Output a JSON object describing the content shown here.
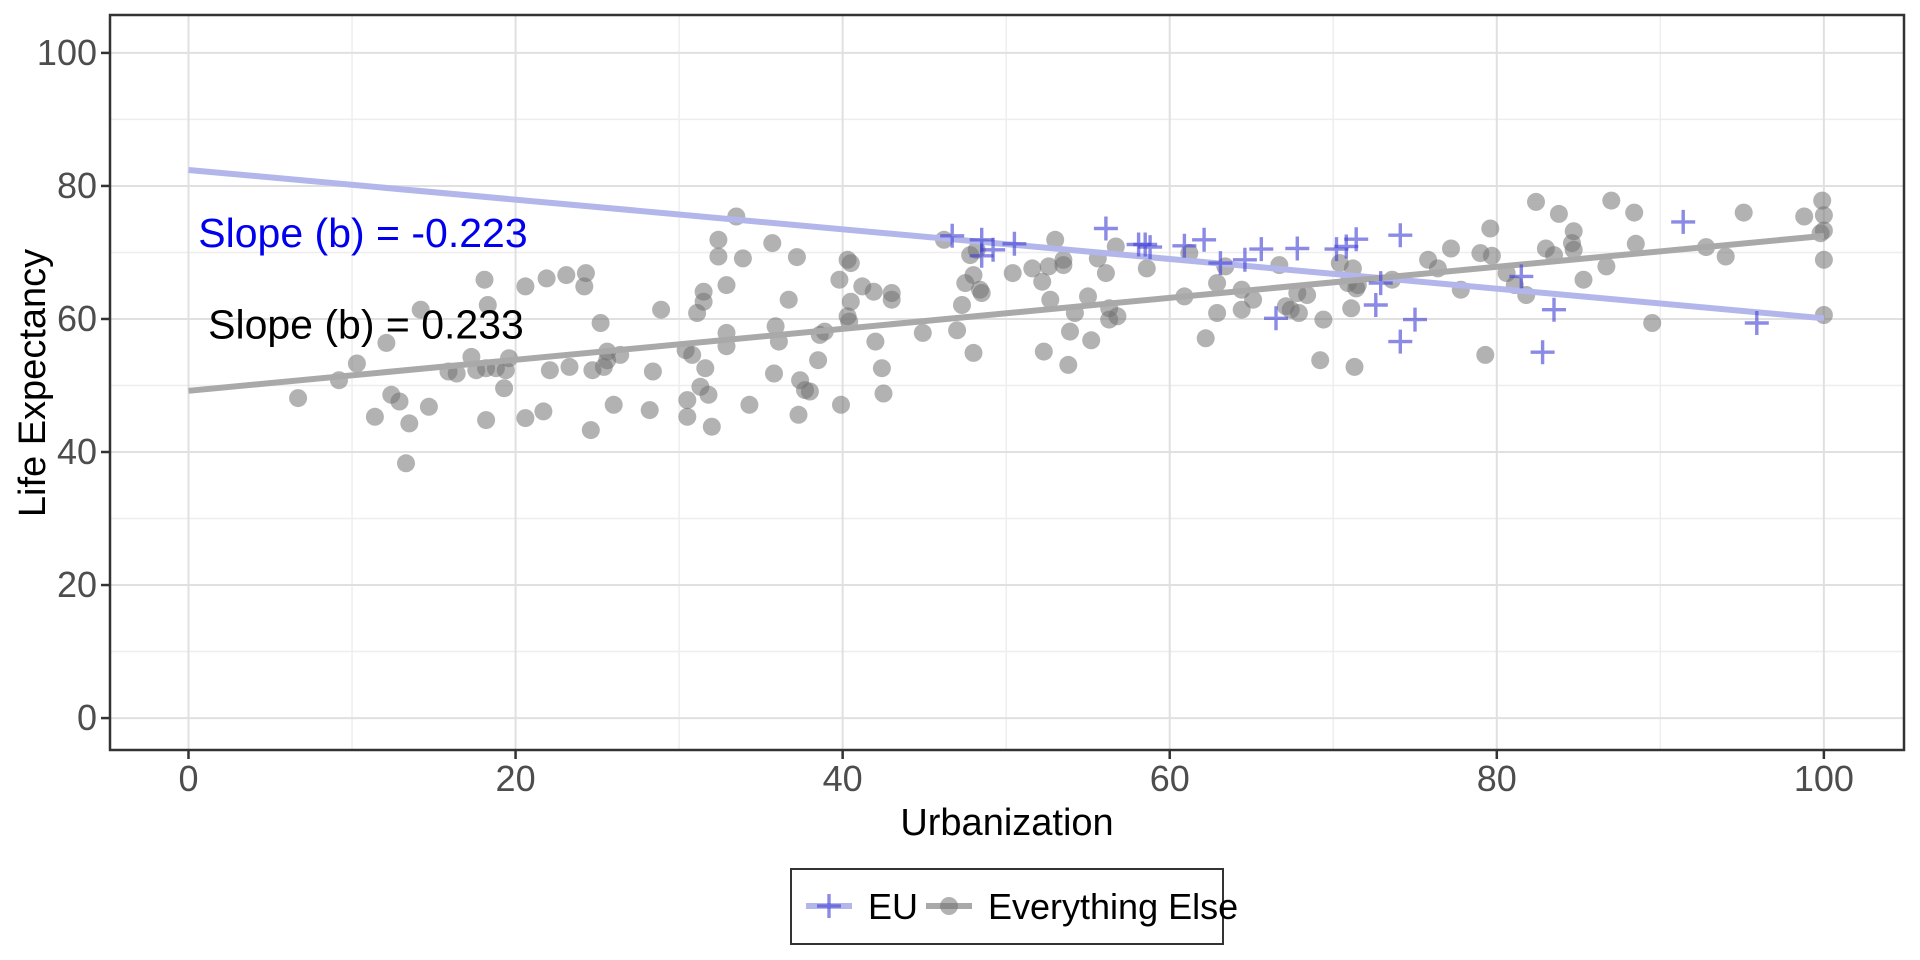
{
  "figure": {
    "background": "#ffffff",
    "panel_border_color": "#333333",
    "grid_major_color": "#e0e0e0",
    "grid_minor_color": "#eeeeee",
    "tick_mark_color": "#333333",
    "tick_label_color": "#4d4d4d"
  },
  "chart_data": {
    "type": "scatter",
    "title": "",
    "xlabel": "Urbanization",
    "ylabel": "Life Expectancy",
    "x_ticks": [
      0,
      20,
      40,
      60,
      80,
      100
    ],
    "y_ticks": [
      0,
      20,
      40,
      60,
      80,
      100
    ],
    "x_minor_ticks": [
      10,
      30,
      50,
      70,
      90
    ],
    "y_minor_ticks": [
      10,
      30,
      50,
      70,
      90
    ],
    "xlim": [
      -4.8,
      104.9
    ],
    "ylim": [
      -4.8,
      105.7
    ],
    "grid": true,
    "legend_position": "bottom",
    "series": [
      {
        "name": "EU",
        "marker": "plus",
        "marker_color": "#4343d6",
        "marker_opacity": 0.62,
        "line_color": "#b3b6ea",
        "regression": {
          "intercept": 82.4,
          "slope": -0.223,
          "x_start": 0,
          "x_end": 100
        },
        "annotation": {
          "text": "Slope (b) = -0.223",
          "color": "#0000EE",
          "x": 0.6,
          "y": 70.8
        },
        "points": [
          [
            46.7,
            72.5
          ],
          [
            48.5,
            71.9
          ],
          [
            48.5,
            69.5
          ],
          [
            49.2,
            70.4
          ],
          [
            50.5,
            71.3
          ],
          [
            56.1,
            73.6
          ],
          [
            58.1,
            71.2
          ],
          [
            58.5,
            71.2
          ],
          [
            58.8,
            70.8
          ],
          [
            60.9,
            71.0
          ],
          [
            62.1,
            71.9
          ],
          [
            63.1,
            68.4
          ],
          [
            64.6,
            68.9
          ],
          [
            65.6,
            70.5
          ],
          [
            66.5,
            60.1
          ],
          [
            67.8,
            70.6
          ],
          [
            70.2,
            70.5
          ],
          [
            70.8,
            70.9
          ],
          [
            71.4,
            72.0
          ],
          [
            72.6,
            62.1
          ],
          [
            72.9,
            65.4
          ],
          [
            74.1,
            72.6
          ],
          [
            74.1,
            56.6
          ],
          [
            75.0,
            59.9
          ],
          [
            81.5,
            66.4
          ],
          [
            82.8,
            55.0
          ],
          [
            83.5,
            61.4
          ],
          [
            91.4,
            74.6
          ],
          [
            95.9,
            59.4
          ]
        ]
      },
      {
        "name": "Everything Else",
        "marker": "circle",
        "marker_color": "#737373",
        "marker_opacity": 0.55,
        "line_color": "#a9a9a9",
        "regression": {
          "intercept": 49.2,
          "slope": 0.233,
          "x_start": 0,
          "x_end": 100
        },
        "annotation": {
          "text": "Slope (b) = 0.233",
          "color": "#000000",
          "x": 1.2,
          "y": 57.1
        },
        "points": [
          [
            6.7,
            48.1
          ],
          [
            9.2,
            50.8
          ],
          [
            10.3,
            53.3
          ],
          [
            11.4,
            45.3
          ],
          [
            12.1,
            56.4
          ],
          [
            12.4,
            48.6
          ],
          [
            12.9,
            47.6
          ],
          [
            13.3,
            38.3
          ],
          [
            13.5,
            44.3
          ],
          [
            14.2,
            61.4
          ],
          [
            14.7,
            46.8
          ],
          [
            15.9,
            52.1
          ],
          [
            16.4,
            51.8
          ],
          [
            17.3,
            54.3
          ],
          [
            17.6,
            52.3
          ],
          [
            18.1,
            65.9
          ],
          [
            18.2,
            52.6
          ],
          [
            18.2,
            44.8
          ],
          [
            18.3,
            62.1
          ],
          [
            18.8,
            52.6
          ],
          [
            19.3,
            49.6
          ],
          [
            19.4,
            52.3
          ],
          [
            19.6,
            54.1
          ],
          [
            20.6,
            64.9
          ],
          [
            20.6,
            45.1
          ],
          [
            21.7,
            46.1
          ],
          [
            21.9,
            66.1
          ],
          [
            22.1,
            52.3
          ],
          [
            23.1,
            66.6
          ],
          [
            23.3,
            52.8
          ],
          [
            24.2,
            64.9
          ],
          [
            24.3,
            66.9
          ],
          [
            24.6,
            43.3
          ],
          [
            24.7,
            52.3
          ],
          [
            25.2,
            59.4
          ],
          [
            25.4,
            52.8
          ],
          [
            25.6,
            55.1
          ],
          [
            25.6,
            53.8
          ],
          [
            26.0,
            47.1
          ],
          [
            26.4,
            54.6
          ],
          [
            28.2,
            46.3
          ],
          [
            28.4,
            52.1
          ],
          [
            28.9,
            61.4
          ],
          [
            30.4,
            55.3
          ],
          [
            30.5,
            47.8
          ],
          [
            30.5,
            45.3
          ],
          [
            30.8,
            54.6
          ],
          [
            31.1,
            60.9
          ],
          [
            31.3,
            49.8
          ],
          [
            31.5,
            64.1
          ],
          [
            31.5,
            62.6
          ],
          [
            31.6,
            52.6
          ],
          [
            31.8,
            48.6
          ],
          [
            32.0,
            43.8
          ],
          [
            32.4,
            71.9
          ],
          [
            32.4,
            69.4
          ],
          [
            32.9,
            65.1
          ],
          [
            32.9,
            57.9
          ],
          [
            32.9,
            55.9
          ],
          [
            33.5,
            75.4
          ],
          [
            33.9,
            69.1
          ],
          [
            34.3,
            47.1
          ],
          [
            35.7,
            71.4
          ],
          [
            35.8,
            51.8
          ],
          [
            35.9,
            58.9
          ],
          [
            36.1,
            56.6
          ],
          [
            36.7,
            62.9
          ],
          [
            37.2,
            69.3
          ],
          [
            37.3,
            45.6
          ],
          [
            37.4,
            50.8
          ],
          [
            37.7,
            49.3
          ],
          [
            38.0,
            49.1
          ],
          [
            38.5,
            53.8
          ],
          [
            38.6,
            57.6
          ],
          [
            38.9,
            58.1
          ],
          [
            39.8,
            65.9
          ],
          [
            39.9,
            47.1
          ],
          [
            40.3,
            68.9
          ],
          [
            40.3,
            60.4
          ],
          [
            40.4,
            59.6
          ],
          [
            40.5,
            68.4
          ],
          [
            40.5,
            62.6
          ],
          [
            41.2,
            64.9
          ],
          [
            41.9,
            64.1
          ],
          [
            42.0,
            56.6
          ],
          [
            42.4,
            52.6
          ],
          [
            42.5,
            48.8
          ],
          [
            43.0,
            63.9
          ],
          [
            43.0,
            62.9
          ],
          [
            44.9,
            57.9
          ],
          [
            46.2,
            71.9
          ],
          [
            47.0,
            58.3
          ],
          [
            47.3,
            62.1
          ],
          [
            47.5,
            65.4
          ],
          [
            47.8,
            69.6
          ],
          [
            48.0,
            66.6
          ],
          [
            48.0,
            54.9
          ],
          [
            48.2,
            70.4
          ],
          [
            48.4,
            64.4
          ],
          [
            48.5,
            63.9
          ],
          [
            50.4,
            66.9
          ],
          [
            51.6,
            67.6
          ],
          [
            52.2,
            65.6
          ],
          [
            52.3,
            55.1
          ],
          [
            52.6,
            67.9
          ],
          [
            52.7,
            62.9
          ],
          [
            53.0,
            71.9
          ],
          [
            53.5,
            68.9
          ],
          [
            53.5,
            68.1
          ],
          [
            53.8,
            53.1
          ],
          [
            53.9,
            58.1
          ],
          [
            54.2,
            60.9
          ],
          [
            55.0,
            63.4
          ],
          [
            55.2,
            56.8
          ],
          [
            55.6,
            69.1
          ],
          [
            56.1,
            66.9
          ],
          [
            56.3,
            59.9
          ],
          [
            56.3,
            61.6
          ],
          [
            56.7,
            70.9
          ],
          [
            56.8,
            60.4
          ],
          [
            58.6,
            67.6
          ],
          [
            60.9,
            63.4
          ],
          [
            61.2,
            69.9
          ],
          [
            62.2,
            57.1
          ],
          [
            62.9,
            65.4
          ],
          [
            62.9,
            60.9
          ],
          [
            63.4,
            67.9
          ],
          [
            64.4,
            64.4
          ],
          [
            64.4,
            61.4
          ],
          [
            65.1,
            62.9
          ],
          [
            66.7,
            68.1
          ],
          [
            67.1,
            61.9
          ],
          [
            67.4,
            61.4
          ],
          [
            67.8,
            63.9
          ],
          [
            67.9,
            60.9
          ],
          [
            68.4,
            63.6
          ],
          [
            69.2,
            53.8
          ],
          [
            69.4,
            59.9
          ],
          [
            70.4,
            68.4
          ],
          [
            71.2,
            67.6
          ],
          [
            70.9,
            65.4
          ],
          [
            71.4,
            64.6
          ],
          [
            71.5,
            65.1
          ],
          [
            71.1,
            61.6
          ],
          [
            71.3,
            52.8
          ],
          [
            73.6,
            65.9
          ],
          [
            75.8,
            68.9
          ],
          [
            76.4,
            67.6
          ],
          [
            77.2,
            70.6
          ],
          [
            77.8,
            64.4
          ],
          [
            79.0,
            69.9
          ],
          [
            79.3,
            54.6
          ],
          [
            79.6,
            73.6
          ],
          [
            79.7,
            69.5
          ],
          [
            80.6,
            66.9
          ],
          [
            81.1,
            65.1
          ],
          [
            81.8,
            63.6
          ],
          [
            82.4,
            77.6
          ],
          [
            83.0,
            70.6
          ],
          [
            83.5,
            69.6
          ],
          [
            83.8,
            75.8
          ],
          [
            84.6,
            71.4
          ],
          [
            84.7,
            73.2
          ],
          [
            84.7,
            70.4
          ],
          [
            85.3,
            65.9
          ],
          [
            86.7,
            67.9
          ],
          [
            87.0,
            77.8
          ],
          [
            88.4,
            76.0
          ],
          [
            88.5,
            71.3
          ],
          [
            89.5,
            59.4
          ],
          [
            92.8,
            70.8
          ],
          [
            94.0,
            69.4
          ],
          [
            95.1,
            76.0
          ],
          [
            98.8,
            75.4
          ],
          [
            99.9,
            77.8
          ],
          [
            100,
            75.6
          ],
          [
            100,
            73.3
          ],
          [
            99.8,
            72.9
          ],
          [
            100,
            68.9
          ],
          [
            100,
            60.6
          ]
        ]
      }
    ]
  }
}
